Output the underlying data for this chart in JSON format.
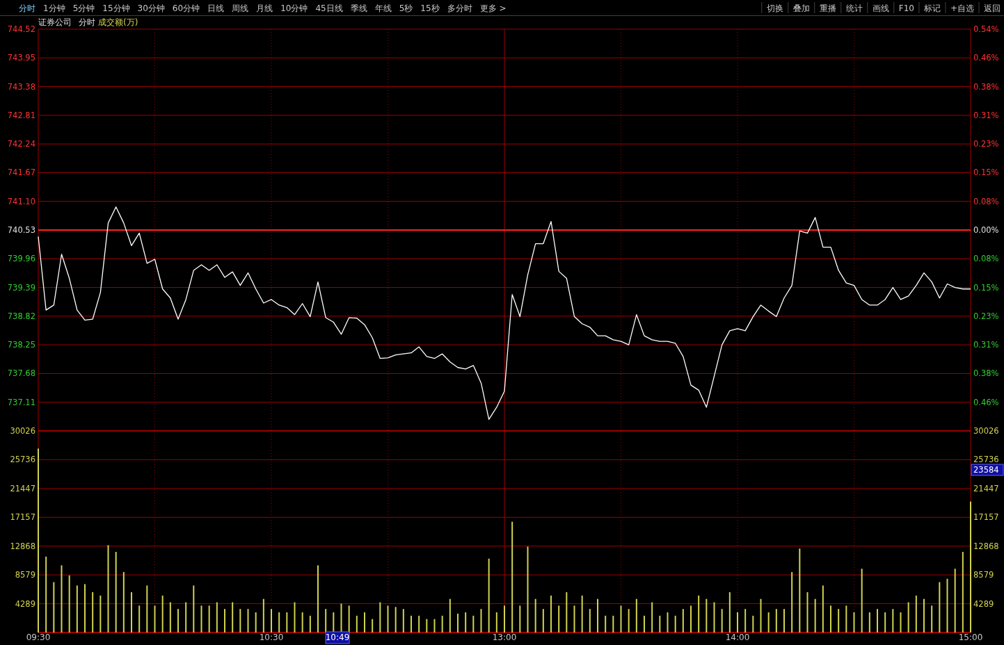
{
  "chart_data": [
    {
      "type": "other",
      "annotations": [
        "分时",
        "1分钟",
        "5分钟",
        "15分钟",
        "30分钟",
        "60分钟",
        "日线",
        "周线",
        "月线",
        "10分钟",
        "45日线",
        "季线",
        "年线",
        "5秒",
        "15秒",
        "多分时",
        "更多 >"
      ]
    },
    {
      "type": "other",
      "annotations": [
        "切换",
        "叠加",
        "重播",
        "统计",
        "画线",
        "F10",
        "标记",
        "+自选",
        "返回"
      ]
    },
    {
      "type": "line",
      "title": "证券公司",
      "subtitle": "分时",
      "annotations": [
        "成交额(万)"
      ],
      "tick_labels": "y",
      "grid": true,
      "categories": [
        null,
        null,
        null,
        null,
        null,
        null,
        null,
        null,
        null,
        null,
        null,
        null,
        null,
        null,
        null,
        null,
        null,
        null,
        null,
        null,
        null,
        null,
        null,
        null,
        null,
        null,
        null,
        null,
        null,
        null,
        null,
        null,
        null,
        null,
        null,
        null,
        null,
        null,
        null,
        null,
        null,
        null,
        null,
        null,
        null,
        null,
        null,
        null,
        null,
        null,
        null,
        null,
        null,
        null,
        null,
        null,
        null,
        null,
        null,
        null,
        null,
        null,
        null,
        null,
        null,
        null,
        null,
        null,
        null,
        null,
        null,
        null,
        null,
        null,
        null,
        null,
        null,
        null,
        null,
        null,
        null,
        null,
        null,
        null,
        null,
        null,
        null,
        null,
        null,
        null,
        null,
        null,
        null,
        null,
        null,
        null,
        null,
        null,
        null,
        null,
        null,
        null,
        null,
        null,
        null,
        null,
        null,
        null,
        null,
        null,
        null,
        null,
        null,
        null,
        null,
        null,
        null,
        null,
        null,
        null,
        null
      ],
      "series": [
        {
          "color": "#ffffff",
          "values": [
            740.4,
            738.94,
            739.04,
            740.05,
            739.57,
            738.94,
            738.74,
            738.76,
            739.29,
            740.67,
            740.99,
            740.67,
            740.22,
            740.47,
            739.87,
            739.95,
            739.36,
            739.18,
            738.76,
            739.15,
            739.73,
            739.84,
            739.73,
            739.84,
            739.59,
            739.7,
            739.43,
            739.68,
            739.36,
            739.08,
            739.15,
            739.04,
            738.99,
            738.85,
            739.07,
            738.81,
            739.5,
            738.79,
            738.7,
            738.46,
            738.79,
            738.78,
            738.65,
            738.39,
            737.98,
            737.99,
            738.05,
            738.07,
            738.09,
            738.21,
            738.02,
            737.98,
            738.07,
            737.91,
            737.8,
            737.77,
            737.84,
            737.49,
            736.77,
            737.01,
            737.33,
            739.25,
            738.81,
            739.64,
            740.26,
            740.26,
            740.7,
            739.71,
            739.57,
            738.81,
            738.67,
            738.6,
            738.43,
            738.43,
            738.35,
            738.32,
            738.25,
            738.85,
            738.43,
            738.35,
            738.32,
            738.32,
            738.28,
            738.02,
            737.45,
            737.35,
            737.01,
            737.63,
            738.25,
            738.53,
            738.57,
            738.53,
            738.81,
            739.04,
            738.92,
            738.81,
            739.18,
            739.43,
            740.51,
            740.47,
            740.78,
            740.19,
            740.19,
            739.73,
            739.48,
            739.43,
            739.15,
            739.04,
            739.04,
            739.15,
            739.39,
            739.15,
            739.22,
            739.43,
            739.68,
            739.5,
            739.18,
            739.46,
            739.39,
            739.36,
            739.36
          ]
        }
      ],
      "ylim": [
        736.54,
        744.52
      ],
      "yticks": [
        737.11,
        737.68,
        738.25,
        738.82,
        739.39,
        739.96,
        740.53,
        {
          "value": 741.1,
          "label": "741.10"
        },
        741.67,
        742.24,
        742.81,
        743.38,
        743.95,
        744.52
      ],
      "y2lim": [
        -0.5388,
        0.5388
      ],
      "y2ticks": [
        {
          "value": -0.4618,
          "label": "0.46%"
        },
        {
          "value": -0.3849,
          "label": "0.38%"
        },
        {
          "value": -0.3079,
          "label": "0.31%"
        },
        {
          "value": -0.2309,
          "label": "0.23%"
        },
        {
          "value": -0.1539,
          "label": "0.15%"
        },
        {
          "value": -0.077,
          "label": "0.08%"
        },
        {
          "value": 0,
          "label": "0.00%"
        },
        {
          "value": 0.077,
          "label": "0.08%"
        },
        {
          "value": 0.1539,
          "label": "0.15%"
        },
        {
          "value": 0.2309,
          "label": "0.23%"
        },
        {
          "value": 0.3079,
          "label": "0.31%"
        },
        {
          "value": 0.3849,
          "label": "0.38%"
        },
        {
          "value": 0.4618,
          "label": "0.46%"
        },
        {
          "value": 0.5388,
          "label": "0.54%"
        }
      ],
      "ref_lines": [
        {
          "axis": "y",
          "value": 740.53,
          "color": "#ff2020"
        }
      ]
    },
    {
      "type": "bar",
      "grid": true,
      "categories": [
        "09:30",
        null,
        null,
        null,
        null,
        null,
        null,
        null,
        null,
        null,
        null,
        null,
        null,
        null,
        null,
        null,
        null,
        null,
        null,
        null,
        null,
        null,
        null,
        null,
        null,
        null,
        null,
        null,
        null,
        null,
        "10:30",
        null,
        null,
        null,
        null,
        null,
        null,
        null,
        null,
        null,
        null,
        null,
        null,
        null,
        null,
        null,
        null,
        null,
        null,
        null,
        null,
        null,
        null,
        null,
        null,
        null,
        null,
        null,
        null,
        null,
        "13:00",
        null,
        null,
        null,
        null,
        null,
        null,
        null,
        null,
        null,
        null,
        null,
        null,
        null,
        null,
        null,
        null,
        null,
        null,
        null,
        null,
        null,
        null,
        null,
        null,
        null,
        null,
        null,
        null,
        null,
        "14:00",
        null,
        null,
        null,
        null,
        null,
        null,
        null,
        null,
        null,
        null,
        null,
        null,
        null,
        null,
        null,
        null,
        null,
        null,
        null,
        null,
        null,
        null,
        null,
        null,
        null,
        null,
        null,
        null,
        null,
        "15:00"
      ],
      "series": [
        {
          "color": "#d2d250",
          "values": [
            27400,
            11300,
            7500,
            10000,
            8500,
            7000,
            7200,
            6000,
            5500,
            13000,
            12000,
            9000,
            6000,
            4000,
            7000,
            4000,
            5500,
            4500,
            3500,
            4500,
            7000,
            4000,
            4000,
            4500,
            3500,
            4500,
            3500,
            3500,
            3000,
            5000,
            3500,
            3000,
            3000,
            4500,
            3000,
            2500,
            10000,
            3500,
            3000,
            4300,
            4000,
            2500,
            3000,
            2000,
            4500,
            4000,
            3800,
            3500,
            2500,
            2500,
            2000,
            2000,
            2500,
            5000,
            2800,
            3000,
            2500,
            3500,
            11000,
            3000,
            4000,
            16500,
            4000,
            12800,
            5000,
            3500,
            5500,
            4000,
            6000,
            4000,
            5500,
            3500,
            5000,
            2500,
            2500,
            4000,
            3500,
            5000,
            2500,
            4500,
            2500,
            3000,
            2500,
            3500,
            4000,
            5500,
            5000,
            4500,
            3500,
            6000,
            3000,
            3500,
            2500,
            5000,
            3000,
            3500,
            3500,
            9000,
            12500,
            6000,
            5000,
            7000,
            4000,
            3500,
            4000,
            3000,
            9500,
            3000,
            3500,
            3000,
            3500,
            3000,
            4500,
            5500,
            5000,
            4000,
            7500,
            8000,
            9500,
            12000,
            19500
          ]
        }
      ],
      "ylim": [
        0,
        30026
      ],
      "yticks": [
        4289,
        8579,
        12868,
        17157,
        21447,
        25736,
        30026
      ],
      "y2lim": [
        0,
        30026
      ],
      "y2ticks": [
        4289,
        8579,
        12868,
        17157,
        21447,
        25736,
        30026
      ],
      "annotations": [
        "10:49",
        "23584"
      ]
    }
  ]
}
